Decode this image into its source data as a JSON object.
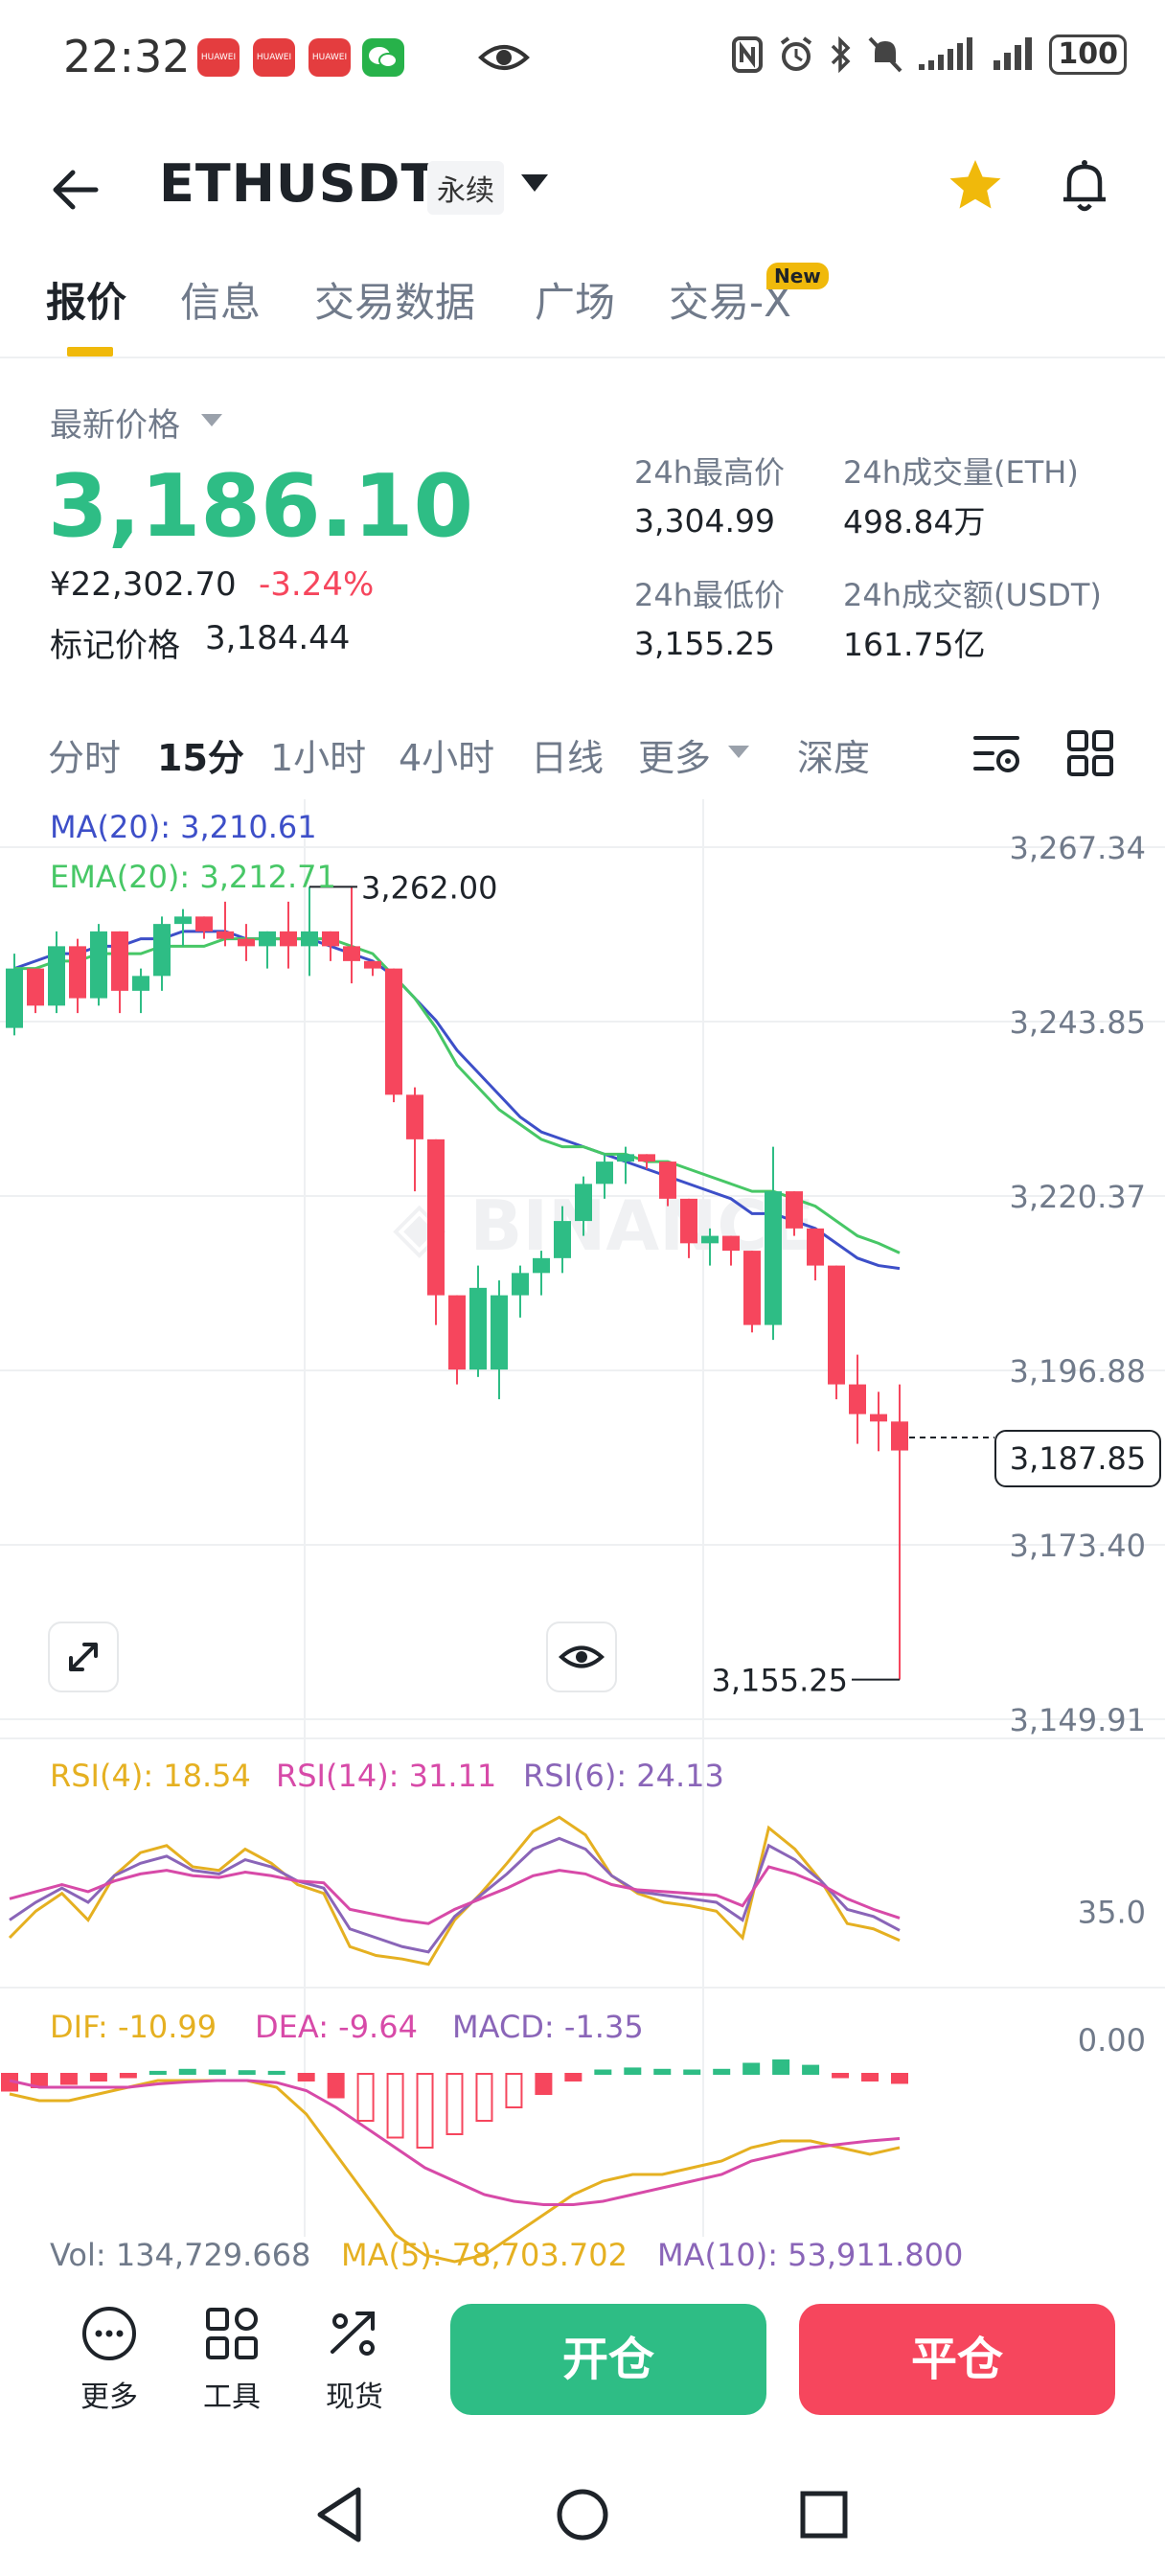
{
  "status_bar": {
    "time": "22:32",
    "battery": "100",
    "notif_labels": [
      "HUAWEI",
      "HUAWEI",
      "HUAWEI"
    ]
  },
  "header": {
    "pair": "ETHUSDT",
    "contract_type": "永续",
    "favorited": true
  },
  "tabs": [
    {
      "label": "报价",
      "active": true
    },
    {
      "label": "信息",
      "active": false
    },
    {
      "label": "交易数据",
      "active": false
    },
    {
      "label": "广场",
      "active": false
    },
    {
      "label": "交易-X",
      "active": false,
      "badge": "New"
    }
  ],
  "price": {
    "latest_label": "最新价格",
    "last_price": "3,186.10",
    "cny_price": "¥22,302.70",
    "change_pct": "-3.24%",
    "mark_label": "标记价格",
    "mark_price": "3,184.44"
  },
  "stats": {
    "high_label": "24h最高价",
    "high": "3,304.99",
    "low_label": "24h最低价",
    "low": "3,155.25",
    "vol_eth_label": "24h成交量(ETH)",
    "vol_eth": "498.84万",
    "vol_usdt_label": "24h成交额(USDT)",
    "vol_usdt": "161.75亿"
  },
  "intervals": [
    {
      "label": "分时",
      "active": false
    },
    {
      "label": "15分",
      "active": true
    },
    {
      "label": "1小时",
      "active": false
    },
    {
      "label": "4小时",
      "active": false
    },
    {
      "label": "日线",
      "active": false
    },
    {
      "label": "更多",
      "active": false
    },
    {
      "label": "深度",
      "active": false
    }
  ],
  "colors": {
    "up": "#2ebd85",
    "down": "#f6465d",
    "accent": "#f0b90b",
    "ma": "#3d4fc8",
    "ema": "#47c766",
    "rsi4": "#e5b021",
    "rsi14": "#d74aa8",
    "rsi6": "#8a65b8"
  },
  "indicators": {
    "ma": "MA(20): 3,210.61",
    "ema": "EMA(20): 3,212.71",
    "rsi4": "RSI(4): 18.54",
    "rsi14": "RSI(14): 31.11",
    "rsi6": "RSI(6): 24.13",
    "dif": "DIF: -10.99",
    "dea": "DEA: -9.64",
    "macd": "MACD: -1.35",
    "vol": "Vol: 134,729.668",
    "vol_ma5": "MA(5): 78,703.702",
    "vol_ma10": "MA(10): 53,911.800"
  },
  "chart_data": {
    "type": "candlestick",
    "interval": "15分",
    "y_ticks": [
      "3,267.34",
      "3,243.85",
      "3,220.37",
      "3,196.88",
      "3,173.40",
      "3,149.91"
    ],
    "ylim": [
      3149.91,
      3267.34
    ],
    "current_price": "3,187.85",
    "high_label": "3,262.00",
    "low_label": "3,155.25",
    "candles": [
      [
        3243,
        3253,
        3242,
        3251
      ],
      [
        3251,
        3251,
        3245,
        3246
      ],
      [
        3246,
        3256,
        3245,
        3254
      ],
      [
        3254,
        3255,
        3245,
        3247
      ],
      [
        3247,
        3257,
        3246,
        3256
      ],
      [
        3256,
        3256,
        3245,
        3248
      ],
      [
        3248,
        3251,
        3245,
        3250
      ],
      [
        3250,
        3258,
        3248,
        3257
      ],
      [
        3257,
        3259,
        3254,
        3258
      ],
      [
        3258,
        3258,
        3255,
        3256
      ],
      [
        3256,
        3260,
        3254,
        3255
      ],
      [
        3255,
        3257,
        3252,
        3254
      ],
      [
        3254,
        3256,
        3251,
        3256
      ],
      [
        3256,
        3260,
        3251,
        3254
      ],
      [
        3254,
        3262,
        3250,
        3256
      ],
      [
        3256,
        3256,
        3252,
        3254
      ],
      [
        3254,
        3262,
        3249,
        3252
      ],
      [
        3252,
        3252,
        3250,
        3251
      ],
      [
        3251,
        3251,
        3233,
        3234
      ],
      [
        3234,
        3235,
        3221,
        3228
      ],
      [
        3228,
        3228,
        3203,
        3207
      ],
      [
        3207,
        3207,
        3195,
        3197
      ],
      [
        3197,
        3211,
        3196,
        3208
      ],
      [
        3197,
        3209,
        3193,
        3207
      ],
      [
        3207,
        3211,
        3204,
        3210
      ],
      [
        3210,
        3213,
        3207,
        3212
      ],
      [
        3212,
        3219,
        3210,
        3217
      ],
      [
        3217,
        3223,
        3215,
        3222
      ],
      [
        3222,
        3226,
        3220,
        3225
      ],
      [
        3225,
        3227,
        3222,
        3226
      ],
      [
        3226,
        3226,
        3224,
        3225
      ],
      [
        3225,
        3225,
        3219,
        3220
      ],
      [
        3220,
        3220,
        3212,
        3214
      ],
      [
        3214,
        3216,
        3211,
        3215
      ],
      [
        3215,
        3215,
        3211,
        3213
      ],
      [
        3213,
        3213,
        3202,
        3203
      ],
      [
        3203,
        3227,
        3201,
        3221
      ],
      [
        3221,
        3221,
        3215,
        3216
      ],
      [
        3216,
        3216,
        3209,
        3211
      ],
      [
        3211,
        3211,
        3193,
        3195
      ],
      [
        3195,
        3199,
        3187,
        3191
      ],
      [
        3191,
        3194,
        3186,
        3190
      ],
      [
        3190,
        3195,
        3155.25,
        3186.1
      ]
    ],
    "ma20": [
      3251,
      3252,
      3253,
      3253,
      3254,
      3254,
      3255,
      3255,
      3256,
      3256,
      3256,
      3255,
      3255,
      3255,
      3255,
      3254,
      3253,
      3252,
      3250,
      3247,
      3244,
      3240,
      3237,
      3234,
      3231,
      3229,
      3228,
      3227,
      3226,
      3225,
      3224,
      3223,
      3222,
      3221,
      3220,
      3218,
      3218,
      3217,
      3216,
      3214,
      3212,
      3211,
      3210.61
    ],
    "ema20": [
      3251,
      3251,
      3252,
      3252,
      3253,
      3253,
      3253,
      3254,
      3254,
      3254,
      3255,
      3255,
      3255,
      3255,
      3255,
      3255,
      3254,
      3253,
      3250,
      3247,
      3243,
      3238,
      3235,
      3232,
      3230,
      3228,
      3227,
      3227,
      3226,
      3226,
      3225,
      3225,
      3224,
      3223,
      3222,
      3221,
      3221,
      3220,
      3219,
      3217,
      3215,
      3214,
      3212.71
    ],
    "rsi": {
      "ylim": [
        0,
        100
      ],
      "ticks": [
        "35.0"
      ],
      "rsi4": [
        20,
        35,
        45,
        30,
        55,
        68,
        72,
        60,
        58,
        70,
        62,
        50,
        45,
        15,
        10,
        8,
        5,
        30,
        45,
        62,
        80,
        88,
        78,
        55,
        45,
        40,
        38,
        35,
        20,
        82,
        70,
        52,
        28,
        25,
        18.54
      ],
      "rsi14": [
        42,
        46,
        50,
        46,
        52,
        56,
        58,
        55,
        54,
        57,
        55,
        52,
        51,
        36,
        33,
        30,
        28,
        36,
        42,
        48,
        55,
        58,
        56,
        50,
        47,
        46,
        45,
        44,
        38,
        60,
        56,
        50,
        42,
        36,
        31.11
      ],
      "rsi6": [
        30,
        40,
        48,
        40,
        55,
        62,
        66,
        58,
        56,
        64,
        60,
        52,
        48,
        25,
        20,
        15,
        12,
        32,
        44,
        56,
        70,
        76,
        70,
        55,
        46,
        44,
        42,
        40,
        30,
        72,
        64,
        52,
        36,
        32,
        24.13
      ]
    },
    "macd": {
      "ticks": [
        "0.00"
      ],
      "hist": [
        -2.5,
        -2.0,
        -1.5,
        -1.0,
        -0.5,
        0.3,
        0.6,
        0.5,
        0.4,
        0.3,
        -1.0,
        -3.5,
        -7.0,
        -9.5,
        -11.0,
        -9.0,
        -7.0,
        -5.0,
        -3.0,
        -1.0,
        0.5,
        0.8,
        0.6,
        0.5,
        0.6,
        1.5,
        2.0,
        1.2,
        -0.5,
        -1.0,
        -1.35
      ],
      "dif": [
        -3,
        -4,
        -4,
        -3,
        -2,
        -1,
        -1,
        -1,
        -1,
        -2,
        -6,
        -12,
        -18,
        -24,
        -27,
        -28,
        -27,
        -24,
        -21,
        -18,
        -16,
        -15,
        -15,
        -14,
        -13,
        -11,
        -10,
        -10,
        -11,
        -12,
        -10.99
      ],
      "dea": [
        -1,
        -2,
        -2,
        -2,
        -2,
        -1.5,
        -1.2,
        -1.0,
        -1.0,
        -1.3,
        -2.5,
        -5,
        -8,
        -11,
        -14,
        -16,
        -18,
        -19,
        -19.5,
        -19.5,
        -19,
        -18,
        -17,
        -16,
        -15,
        -13,
        -12,
        -11,
        -10.5,
        -10,
        -9.64
      ]
    }
  },
  "bottom_bar": {
    "more_label": "更多",
    "tools_label": "工具",
    "spot_label": "现货",
    "open_label": "开仓",
    "close_label": "平仓"
  }
}
